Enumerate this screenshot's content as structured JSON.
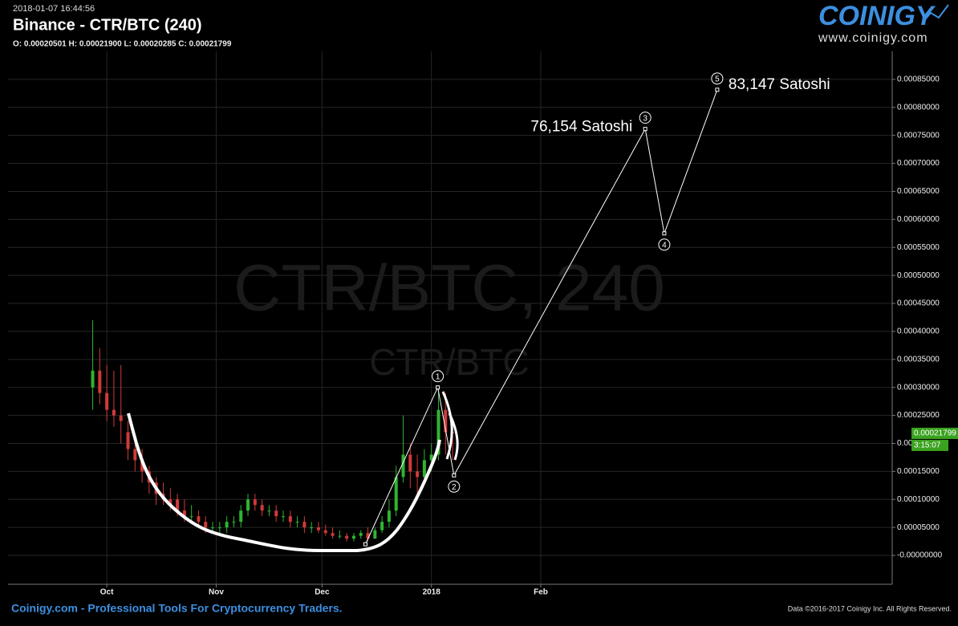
{
  "header": {
    "timestamp": "2018-01-07 16:44:56",
    "title": "Binance - CTR/BTC (240)",
    "ohlc": "O: 0.00020501 H: 0.00021900 L: 0.00020285 C: 0.00021799"
  },
  "logo": {
    "name": "COINIGY",
    "url": "www.coinigy.com"
  },
  "watermark": {
    "main": "CTR/BTC, 240",
    "sub": "CTR/BTC"
  },
  "footer": {
    "left": "Coinigy.com - Professional Tools For Cryptocurrency Traders.",
    "right": "Data ©2016-2017 Coinigy Inc. All Rights Reserved."
  },
  "chart_data": {
    "type": "candlestick",
    "xlim": [
      -28,
      222.6
    ],
    "ylim": [
      -5.15e-05,
      0.0009
    ],
    "xticks": [
      {
        "value": 0,
        "label": "Oct"
      },
      {
        "value": 31,
        "label": "Nov"
      },
      {
        "value": 61,
        "label": "Dec"
      },
      {
        "value": 92,
        "label": "2018"
      },
      {
        "value": 123,
        "label": "Feb"
      }
    ],
    "yticks": [
      {
        "value": 0,
        "label": "-0.00000000"
      },
      {
        "value": 5e-05,
        "label": "0.00005000"
      },
      {
        "value": 0.0001,
        "label": "0.00010000"
      },
      {
        "value": 0.00015,
        "label": "0.00015000"
      },
      {
        "value": 0.0002,
        "label": "0.00020000"
      },
      {
        "value": 0.00025,
        "label": "0.00025000"
      },
      {
        "value": 0.0003,
        "label": "0.00030000"
      },
      {
        "value": 0.00035,
        "label": "0.00035000"
      },
      {
        "value": 0.0004,
        "label": "0.00040000"
      },
      {
        "value": 0.00045,
        "label": "0.00045000"
      },
      {
        "value": 0.0005,
        "label": "0.00050000"
      },
      {
        "value": 0.00055,
        "label": "0.00055000"
      },
      {
        "value": 0.0006,
        "label": "0.00060000"
      },
      {
        "value": 0.00065,
        "label": "0.00065000"
      },
      {
        "value": 0.0007,
        "label": "0.00070000"
      },
      {
        "value": 0.00075,
        "label": "0.00075000"
      },
      {
        "value": 0.0008,
        "label": "0.00080000"
      },
      {
        "value": 0.00085,
        "label": "0.00085000"
      }
    ],
    "grid": true,
    "up_color": "#2fb52f",
    "down_color": "#d03a3a",
    "x": [
      -4,
      -2,
      0,
      2,
      4,
      6,
      8,
      10,
      12,
      14,
      16,
      18,
      20,
      22,
      24,
      26,
      28,
      30,
      32,
      34,
      36,
      38,
      40,
      42,
      44,
      46,
      48,
      50,
      52,
      54,
      56,
      58,
      60,
      62,
      64,
      66,
      68,
      70,
      72,
      74,
      76,
      78,
      80,
      82,
      84,
      86,
      88,
      90,
      92,
      94,
      96,
      98
    ],
    "open": [
      0.0003,
      0.00033,
      0.00029,
      0.00026,
      0.00025,
      0.00022,
      0.00019,
      0.00017,
      0.00015,
      0.00013,
      0.00011,
      0.0001,
      0.0001,
      8e-05,
      7e-05,
      7e-05,
      6e-05,
      5e-05,
      5e-05,
      5e-05,
      6e-05,
      6e-05,
      8e-05,
      0.0001,
      9e-05,
      8e-05,
      8e-05,
      7e-05,
      7e-05,
      6e-05,
      6e-05,
      5e-05,
      5e-05,
      4.5e-05,
      4e-05,
      3.5e-05,
      3.5e-05,
      3e-05,
      3.5e-05,
      4e-05,
      3e-05,
      4.5e-05,
      6e-05,
      8e-05,
      0.00014,
      0.00018,
      0.00015,
      0.00014,
      0.00017,
      0.00018,
      0.00026,
      0.00022
    ],
    "high": [
      0.00042,
      0.00037,
      0.00034,
      0.00033,
      0.00034,
      0.00024,
      0.00021,
      0.00019,
      0.00016,
      0.00014,
      0.00013,
      0.00012,
      0.00011,
      0.0001,
      9e-05,
      8e-05,
      7e-05,
      6e-05,
      6e-05,
      7e-05,
      7e-05,
      9e-05,
      0.00011,
      0.00011,
      0.0001,
      9e-05,
      9e-05,
      8e-05,
      8e-05,
      7e-05,
      7e-05,
      6e-05,
      6e-05,
      5.5e-05,
      5e-05,
      4.5e-05,
      4e-05,
      4e-05,
      4.5e-05,
      5e-05,
      5e-05,
      7e-05,
      0.0001,
      0.00016,
      0.00025,
      0.0002,
      0.00018,
      0.00019,
      0.0002,
      0.0003,
      0.00029,
      0.00024
    ],
    "low": [
      0.00026,
      0.00027,
      0.00024,
      0.00023,
      0.0002,
      0.00017,
      0.00015,
      0.00013,
      0.00011,
      9e-05,
      9e-05,
      8e-05,
      7e-05,
      6e-05,
      6e-05,
      5e-05,
      4e-05,
      4e-05,
      4e-05,
      4e-05,
      5e-05,
      5e-05,
      7e-05,
      8e-05,
      7e-05,
      7e-05,
      6e-05,
      6e-05,
      5e-05,
      5e-05,
      4e-05,
      4e-05,
      4e-05,
      3.5e-05,
      3e-05,
      3e-05,
      2.5e-05,
      2.5e-05,
      3e-05,
      2.5e-05,
      3e-05,
      4e-05,
      5e-05,
      7e-05,
      0.00013,
      0.00012,
      0.00011,
      0.00013,
      0.00015,
      0.00017,
      0.00018,
      0.00017
    ],
    "close": [
      0.00033,
      0.00029,
      0.00026,
      0.00025,
      0.00024,
      0.00019,
      0.00017,
      0.00015,
      0.00013,
      0.00011,
      0.0001,
      9e-05,
      8e-05,
      7e-05,
      7e-05,
      6e-05,
      5e-05,
      5e-05,
      5e-05,
      6e-05,
      6e-05,
      8e-05,
      0.0001,
      9e-05,
      8e-05,
      8e-05,
      7e-05,
      7e-05,
      6e-05,
      6e-05,
      5e-05,
      5e-05,
      4.5e-05,
      4e-05,
      3.5e-05,
      3.5e-05,
      3e-05,
      3.5e-05,
      4e-05,
      3e-05,
      4.5e-05,
      6e-05,
      8e-05,
      0.00014,
      0.00018,
      0.00015,
      0.00014,
      0.00017,
      0.00018,
      0.00026,
      0.00022,
      0.00021799
    ],
    "last_price": {
      "value": 0.00021799,
      "label": "0.00021799",
      "countdown": "3:15:07",
      "color": "#3aa21f"
    },
    "wave": {
      "x": [
        73.3,
        93.8,
        98.4,
        152.6,
        158,
        173
      ],
      "y": [
        2e-05,
        0.0003,
        0.000143,
        0.00076154,
        0.000575,
        0.00083147
      ],
      "labels": [
        null,
        "1",
        "2",
        "3",
        "4",
        "5"
      ],
      "value_labels": [
        null,
        null,
        null,
        "76,154 Satoshi",
        null,
        "83,147 Satoshi"
      ]
    }
  }
}
